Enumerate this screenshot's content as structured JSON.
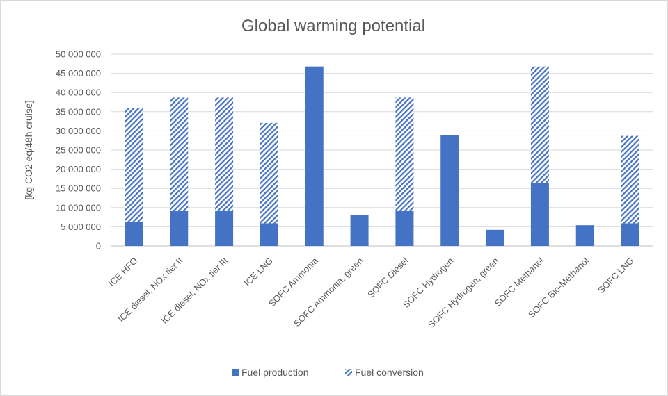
{
  "chart_data": {
    "type": "bar",
    "stacked": true,
    "title": "Global warming potential",
    "ylabel": "[kg CO2 eq/48h cruise]",
    "xlabel": "",
    "ylim": [
      0,
      50000000
    ],
    "yticks": [
      0,
      5000000,
      10000000,
      15000000,
      20000000,
      25000000,
      30000000,
      35000000,
      40000000,
      45000000,
      50000000
    ],
    "ytick_labels": [
      "0",
      "5 000 000",
      "10 000 000",
      "15 000 000",
      "20 000 000",
      "25 000 000",
      "30 000 000",
      "35 000 000",
      "40 000 000",
      "45 000 000",
      "50 000 000"
    ],
    "grid": true,
    "legend_position": "bottom",
    "categories": [
      "ICE HFO",
      "ICE diesel, NOx tier II",
      "ICE diesel, NOx tier III",
      "ICE LNG",
      "SOFC Ammonia",
      "SOFC Ammonia, green",
      "SOFC Diesel",
      "SOFC Hydrogen",
      "SOFC Hydrogen, green",
      "SOFC Methanol",
      "SOFC Bio-Methanol",
      "SOFC LNG"
    ],
    "series": [
      {
        "name": "Fuel production",
        "pattern": "solid",
        "color": "#4472c4",
        "values": [
          6300000,
          9200000,
          9200000,
          5900000,
          46800000,
          8100000,
          9200000,
          28900000,
          4200000,
          16500000,
          5400000,
          5900000
        ]
      },
      {
        "name": "Fuel conversion",
        "pattern": "hatched",
        "color": "#4472c4",
        "values": [
          29600000,
          29500000,
          29500000,
          26200000,
          0,
          0,
          29500000,
          0,
          0,
          30300000,
          0,
          22800000
        ]
      }
    ]
  }
}
